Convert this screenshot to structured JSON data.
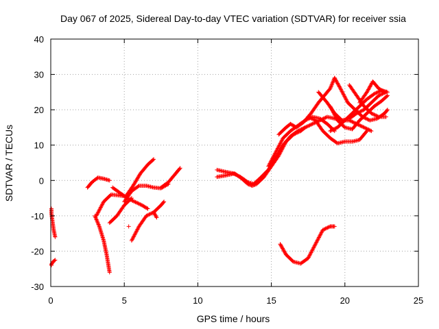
{
  "chart_data": {
    "type": "scatter",
    "title": "Day 067 of 2025, Sidereal Day-to-day VTEC variation (SDTVAR) for receiver ssia",
    "xlabel": "GPS time / hours",
    "ylabel": "SDTVAR / TECUs",
    "xlim": [
      0,
      25
    ],
    "ylim": [
      -30,
      40
    ],
    "xticks": [
      0,
      5,
      10,
      15,
      20,
      25
    ],
    "yticks": [
      -30,
      -20,
      -10,
      0,
      10,
      20,
      30,
      40
    ],
    "grid": true,
    "marker": "plus",
    "color": "#ff0000",
    "series": [
      {
        "tracks": [
          {
            "x": [
              0.0,
              0.1,
              0.2,
              0.3
            ],
            "y": [
              -8,
              -11,
              -14,
              -16
            ]
          },
          {
            "x": [
              0.0,
              0.15,
              0.3
            ],
            "y": [
              -24,
              -23,
              -22.5
            ]
          },
          {
            "x": [
              2.5,
              2.8,
              3.2,
              3.6,
              4.0
            ],
            "y": [
              -2,
              -0.5,
              0.8,
              0.5,
              0
            ]
          },
          {
            "x": [
              3.0,
              3.3,
              3.6,
              3.8,
              4.0
            ],
            "y": [
              -10,
              -13,
              -17,
              -21,
              -26
            ]
          },
          {
            "x": [
              3.1,
              3.6,
              4.1,
              4.6,
              5.1,
              5.6,
              6.1,
              6.6,
              7.0
            ],
            "y": [
              -10,
              -6,
              -4,
              -4.2,
              -4.5,
              -1.5,
              2,
              4.5,
              6
            ]
          },
          {
            "x": [
              4.0,
              4.5,
              5.0,
              5.5
            ],
            "y": [
              -12,
              -10,
              -7,
              -5
            ]
          },
          {
            "x": [
              4.2,
              4.7,
              5.2,
              5.7,
              6.2,
              6.6
            ],
            "y": [
              -2,
              -3.5,
              -5,
              -6,
              -7,
              -8
            ]
          },
          {
            "x": [
              5.0,
              5.5,
              6.0,
              6.5,
              7.0,
              7.5,
              8.0
            ],
            "y": [
              -6,
              -3,
              -1.5,
              -1.5,
              -2,
              -2.2,
              -1
            ]
          },
          {
            "x": [
              5.5,
              6.0,
              6.5,
              7.0,
              7.2
            ],
            "y": [
              -17,
              -13,
              -10,
              -9,
              -10.5
            ]
          },
          {
            "x": [
              7.5,
              8.0,
              8.5,
              8.8
            ],
            "y": [
              -2,
              -0.5,
              2,
              3.5
            ]
          },
          {
            "x": [
              7.0,
              7.5,
              7.7
            ],
            "y": [
              -9,
              -7,
              -6
            ]
          },
          {
            "x": [
              5.3
            ],
            "y": [
              -13
            ]
          },
          {
            "x": [
              11.3,
              11.8,
              12.4,
              12.9,
              13.4,
              13.8,
              14.2,
              14.8,
              15.3,
              15.8
            ],
            "y": [
              3,
              2.5,
              2,
              1,
              -0.5,
              -1,
              0.5,
              3,
              6.5,
              10
            ]
          },
          {
            "x": [
              11.3,
              12.0,
              12.5,
              13.0,
              13.4,
              13.7,
              14.0,
              14.5,
              15.0,
              15.5,
              16.0,
              16.5,
              17.0,
              17.3
            ],
            "y": [
              1,
              1.5,
              2,
              0.5,
              -1,
              -1.5,
              -1,
              1,
              4,
              7,
              11,
              13,
              14,
              15
            ]
          },
          {
            "x": [
              14.8,
              15.3,
              15.8,
              16.3,
              16.8,
              17.3,
              17.8,
              18.3,
              18.8,
              19.3
            ],
            "y": [
              4,
              8,
              12,
              14,
              15.5,
              17,
              18,
              17.5,
              16,
              14
            ]
          },
          {
            "x": [
              14.8,
              15.3,
              15.8,
              16.3,
              16.8,
              17.3,
              17.8,
              18.3,
              18.8,
              19.3,
              19.8,
              20.3,
              20.8,
              21.3,
              21.8
            ],
            "y": [
              3,
              6,
              10,
              12.5,
              14,
              15,
              16,
              17,
              18,
              17.5,
              17,
              17,
              16,
              15,
              14
            ]
          },
          {
            "x": [
              15.5,
              16.0,
              16.3,
              16.7,
              17.2,
              17.7,
              18.2,
              18.6,
              19.0,
              19.3
            ],
            "y": [
              13,
              15,
              16,
              15,
              16.5,
              19,
              22,
              24,
              26,
              29
            ]
          },
          {
            "x": [
              17.5,
              18.0,
              18.5,
              19.0,
              19.5,
              20.0,
              20.5,
              21.0,
              21.5
            ],
            "y": [
              18,
              17,
              14,
              12,
              10.5,
              11,
              11,
              11.5,
              14
            ]
          },
          {
            "x": [
              18.2,
              18.8,
              19.3,
              19.8,
              20.3,
              20.8,
              21.3,
              21.8,
              22.3,
              22.8
            ],
            "y": [
              25,
              22,
              19,
              17,
              17.5,
              19,
              20,
              22,
              24,
              25
            ]
          },
          {
            "x": [
              19.0,
              19.5,
              20.0,
              20.5,
              21.0,
              21.5,
              22.0,
              22.5,
              22.9
            ],
            "y": [
              21,
              17,
              15,
              14.5,
              17,
              19,
              21,
              22.5,
              24
            ]
          },
          {
            "x": [
              19.3,
              19.7,
              20.2,
              20.7,
              21.2,
              21.7,
              22.2,
              22.7,
              22.9
            ],
            "y": [
              29,
              26,
              22,
              20,
              18,
              17,
              17.5,
              19,
              20
            ]
          },
          {
            "x": [
              19.0,
              19.5,
              20.0,
              20.5,
              21.0,
              21.5,
              22.0,
              22.5,
              22.9
            ],
            "y": [
              14,
              15,
              17,
              19,
              21,
              23,
              24.5,
              25.5,
              25
            ]
          },
          {
            "x": [
              20.3,
              20.8,
              21.3,
              21.8,
              22.3,
              22.8
            ],
            "y": [
              27,
              24,
              21,
              19,
              18,
              18
            ]
          },
          {
            "x": [
              21.0,
              21.5,
              21.9,
              22.3,
              22.7
            ],
            "y": [
              22,
              25,
              28,
              26,
              25
            ]
          },
          {
            "x": [
              15.6,
              16.0,
              16.5,
              17.0,
              17.5,
              18.0,
              18.5,
              19.0,
              19.3
            ],
            "y": [
              -18,
              -21,
              -23,
              -23.5,
              -22,
              -18,
              -14,
              -13,
              -13
            ]
          }
        ]
      }
    ]
  }
}
